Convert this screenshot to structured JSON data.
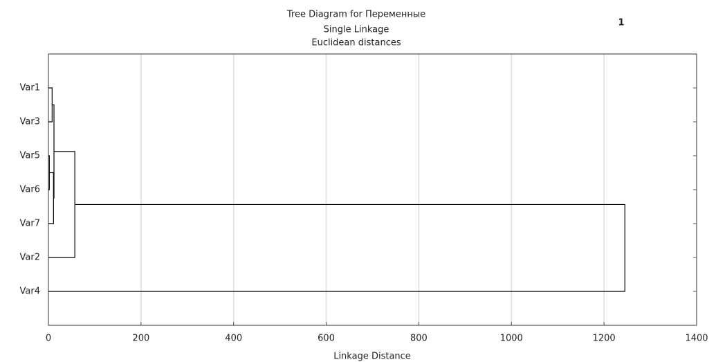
{
  "chart_data": {
    "type": "dendrogram",
    "title": "Tree Diagram for  Переменные",
    "subtitle": [
      "Single Linkage",
      "Euclidean distances"
    ],
    "annotation": "1",
    "xlabel": "Linkage Distance",
    "leaves": [
      "Var1",
      "Var3",
      "Var5",
      "Var6",
      "Var7",
      "Var2",
      "Var4"
    ],
    "merges": [
      {
        "left": 2,
        "right": 3,
        "height": 2
      },
      {
        "left": 0,
        "right": 1,
        "height": 8
      },
      {
        "left": 7,
        "right": 4,
        "height": 11
      },
      {
        "left": 8,
        "right": 9,
        "height": 12
      },
      {
        "left": 10,
        "right": 5,
        "height": 57
      },
      {
        "left": 11,
        "right": 6,
        "height": 1245
      }
    ],
    "xlim": [
      0,
      1400
    ],
    "xticks": [
      0,
      200,
      400,
      600,
      800,
      1000,
      1200,
      1400
    ],
    "grid": true,
    "color": "#000000"
  }
}
